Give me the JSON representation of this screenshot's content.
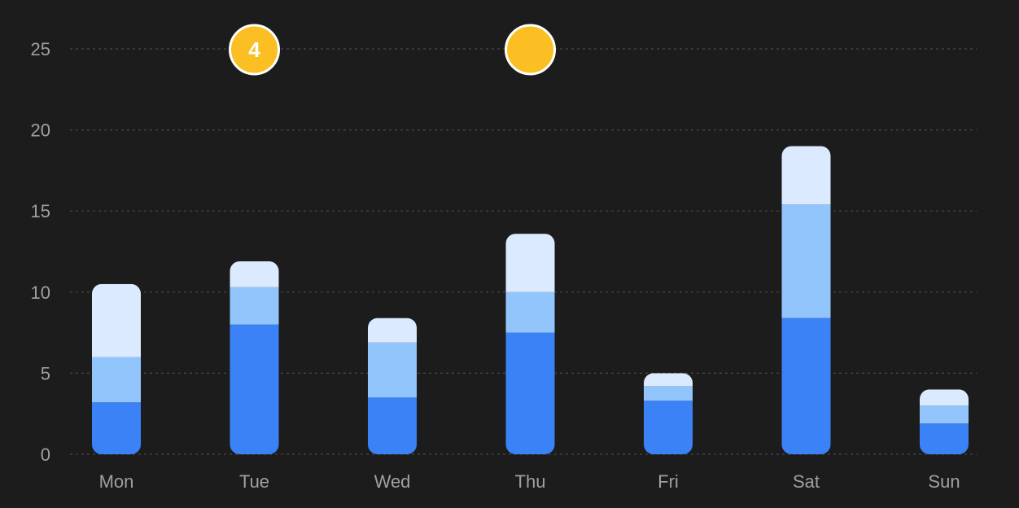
{
  "chart_data": {
    "type": "bar",
    "stacked": true,
    "categories": [
      "Mon",
      "Tue",
      "Wed",
      "Thu",
      "Fri",
      "Sat",
      "Sun"
    ],
    "series": [
      {
        "values": [
          3.2,
          8.0,
          3.5,
          7.5,
          3.3,
          8.4,
          1.9
        ]
      },
      {
        "values": [
          2.8,
          2.3,
          3.4,
          2.5,
          0.9,
          7.0,
          1.1
        ]
      },
      {
        "values": [
          4.5,
          1.6,
          1.5,
          3.6,
          0.8,
          3.6,
          1.0
        ]
      }
    ],
    "colors": [
      "#3b82f6",
      "#93c5fd",
      "#dbeafe"
    ],
    "ylim": [
      0,
      25
    ],
    "yticks": [
      0,
      5,
      10,
      15,
      20,
      25
    ],
    "grid": true,
    "annotations": [
      {
        "category": "Tue",
        "y": 25,
        "label": "4",
        "color": "#fbbf24"
      },
      {
        "category": "Thu",
        "y": 25,
        "label": "",
        "color": "#fbbf24"
      }
    ]
  }
}
